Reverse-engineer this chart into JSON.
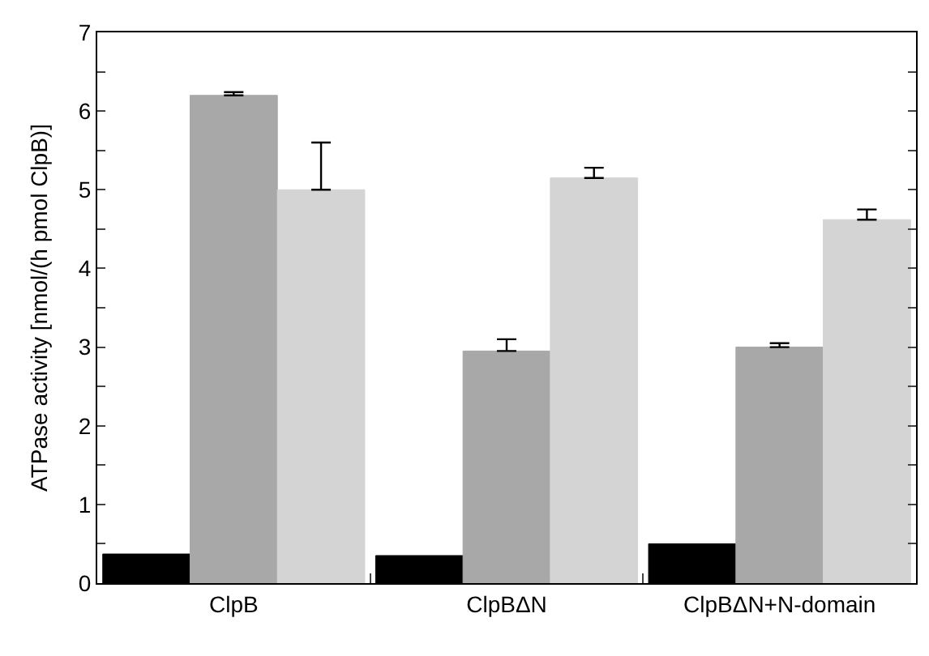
{
  "chart_data": {
    "type": "bar",
    "ylabel": "ATPase activity [nmol/(h pmol ClpB)]",
    "categories": [
      "ClpB",
      "ClpBΔN",
      "ClpBΔN+N-domain"
    ],
    "series": [
      {
        "color": "#000000",
        "values": [
          0.37,
          0.35,
          0.5
        ]
      },
      {
        "color": "#a8a8a8",
        "values": [
          6.2,
          2.95,
          3.0
        ],
        "errors": [
          [
            6.2,
            6.24
          ],
          [
            2.95,
            3.1
          ],
          [
            3.0,
            3.05
          ]
        ]
      },
      {
        "color": "#d4d4d4",
        "values": [
          5.0,
          5.15,
          4.62
        ],
        "errors": [
          [
            5.0,
            5.6
          ],
          [
            5.15,
            5.28
          ],
          [
            4.62,
            4.75
          ]
        ]
      }
    ],
    "ylim": [
      0,
      7
    ],
    "yticks": [
      0,
      {
        "value": 0.5,
        "label": null
      },
      1,
      {
        "value": 1.5,
        "label": null
      },
      2,
      {
        "value": 2.5,
        "label": null
      },
      3,
      {
        "value": 3.5,
        "label": null
      },
      4,
      {
        "value": 4.5,
        "label": null
      },
      5,
      {
        "value": 5.5,
        "label": null
      },
      6,
      {
        "value": 6.5,
        "label": null
      },
      7
    ]
  }
}
